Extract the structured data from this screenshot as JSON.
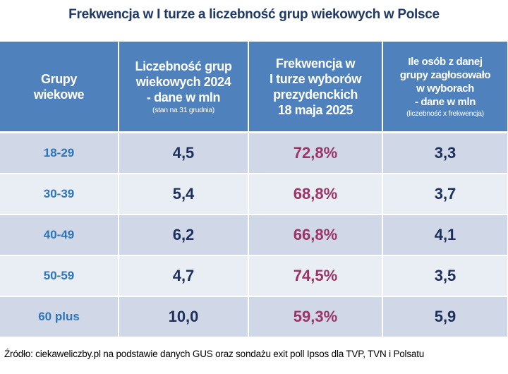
{
  "title": "Frekwencja w I turze a liczebność grup wiekowych w Polsce",
  "chart_data": {
    "type": "table",
    "title": "Frekwencja w I turze a liczebność grup wiekowych w Polsce",
    "columns": [
      {
        "lines": [
          "Grupy",
          "wiekowe"
        ],
        "note": ""
      },
      {
        "lines": [
          "Liczebność grup",
          "wiekowych 2024",
          "- dane w mln"
        ],
        "note": "(stan na 31 grudnia)"
      },
      {
        "lines": [
          "Frekwencja w",
          "I turze wyborów",
          "prezydenckich",
          "18 maja 2025"
        ],
        "note": ""
      },
      {
        "lines": [
          "Ile osób z danej",
          "grupy zagłosowało",
          "w wyborach",
          "- dane w mln"
        ],
        "note": "(liczebność x frekwencja)"
      }
    ],
    "rows": [
      [
        "18-29",
        "4,5",
        "72,8%",
        "3,3"
      ],
      [
        "30-39",
        "5,4",
        "68,8%",
        "3,7"
      ],
      [
        "40-49",
        "6,2",
        "66,8%",
        "4,1"
      ],
      [
        "50-59",
        "4,7",
        "74,5%",
        "3,5"
      ],
      [
        "60 plus",
        "10,0",
        "59,3%",
        "5,9"
      ]
    ]
  },
  "colors": {
    "header": "#4f81bd",
    "row_odd": "#d0d8e8",
    "row_even": "#e9edf4",
    "group_text": "#2e75b6",
    "value_text": "#1f2f5c",
    "percent_text": "#9b3366",
    "title": "#1f3864"
  },
  "source": "Źródło: ciekaweliczby.pl na podstawie danych GUS oraz sondażu exit poll Ipsos dla TVP, TVN i Polsatu"
}
